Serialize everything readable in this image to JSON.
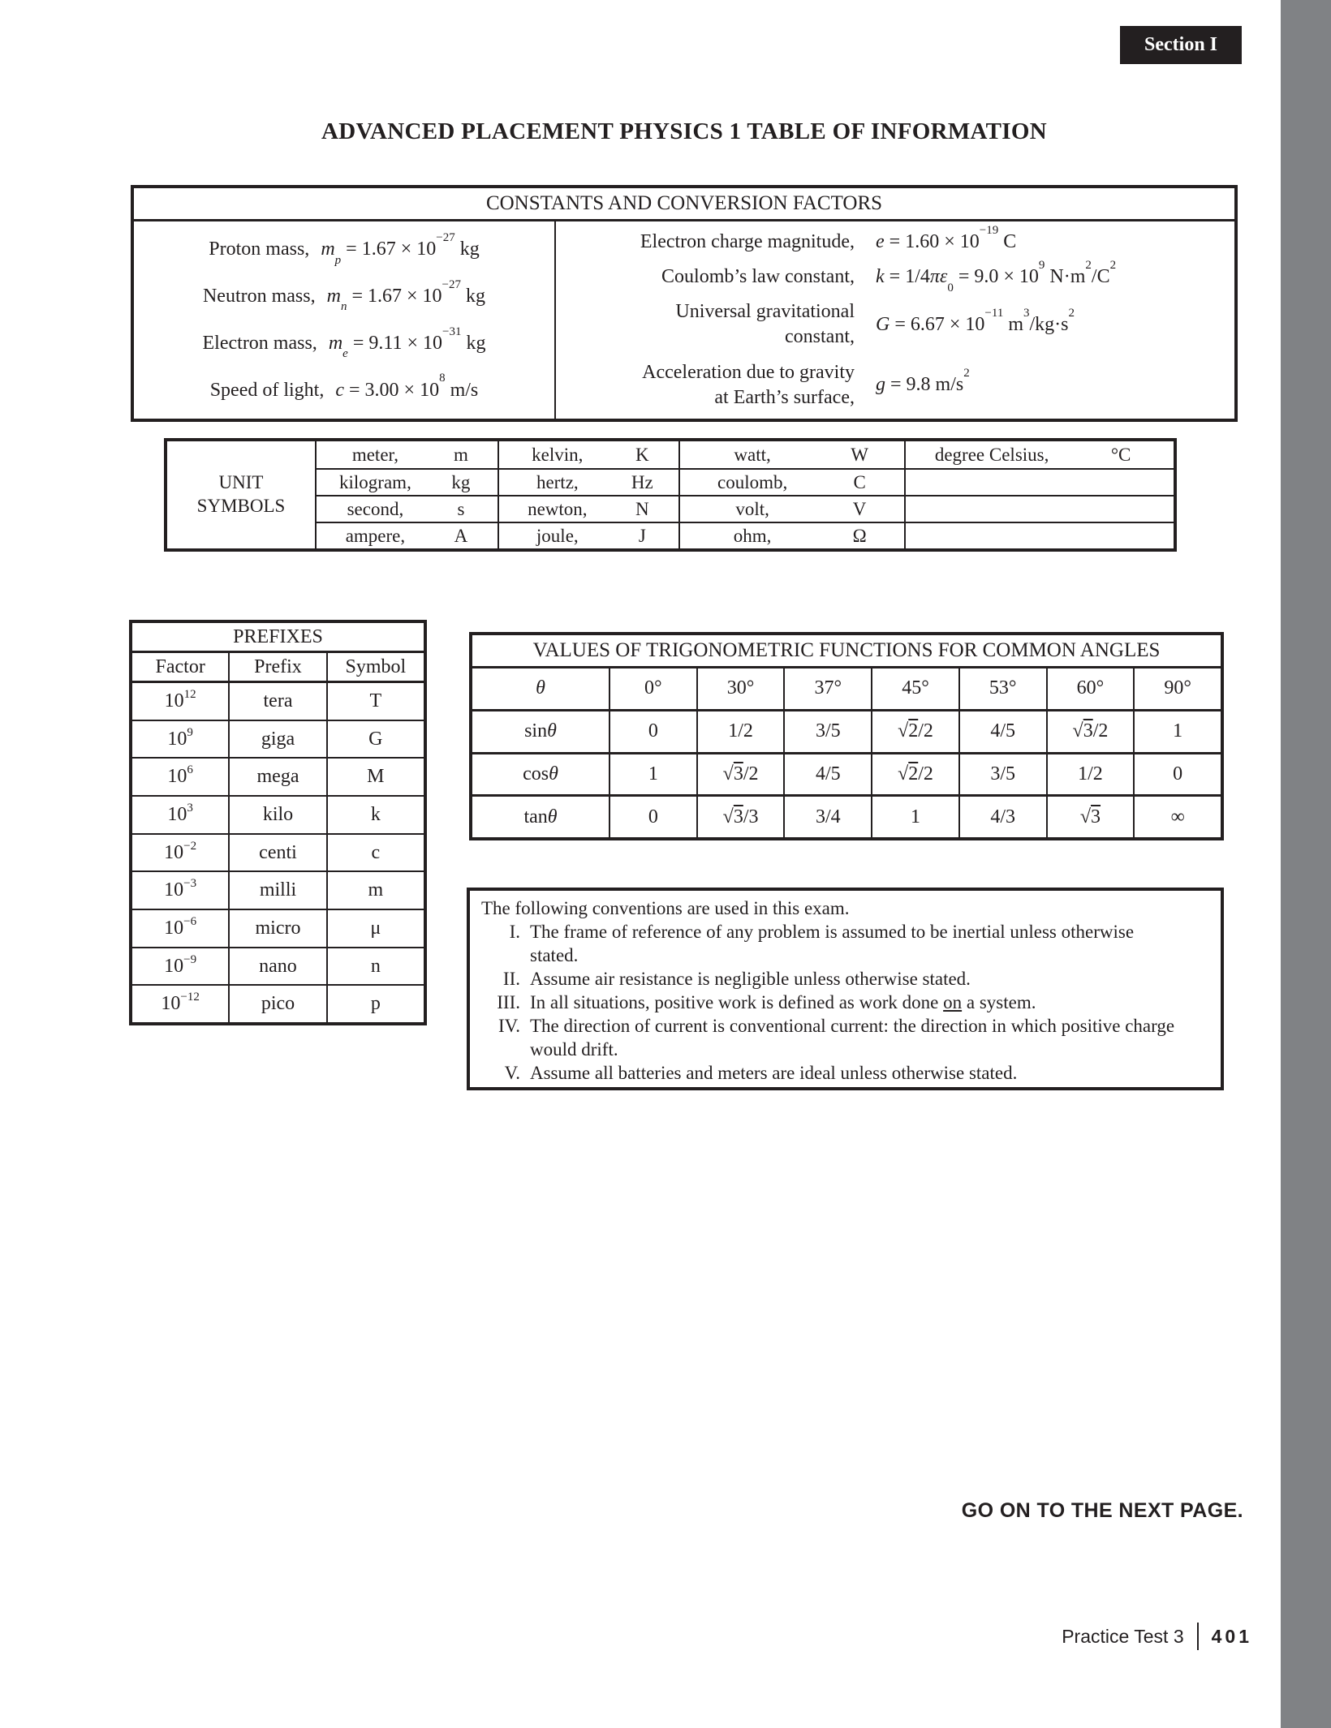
{
  "page": {
    "section_badge": "Section I",
    "title": "ADVANCED PLACEMENT PHYSICS 1 TABLE OF INFORMATION",
    "go_on": "GO ON TO THE NEXT PAGE.",
    "footer": {
      "label": "Practice Test 3",
      "page_number": "401"
    }
  },
  "colors": {
    "ink": "#231f20",
    "stripe_gray": "#808285",
    "badge_bg": "#231f20",
    "badge_text": "#ffffff"
  },
  "constants_box": {
    "header": "CONSTANTS AND CONVERSION FACTORS",
    "left": [
      {
        "label": "Proton mass,",
        "formula": "<i>m<sub>p</sub></i> = 1.67 × 10<sup>−27</sup> kg"
      },
      {
        "label": "Neutron mass,",
        "formula": "<i>m<sub>n</sub></i> = 1.67 × 10<sup>−27</sup> kg"
      },
      {
        "label": "Electron mass,",
        "formula": "<i>m<sub>e</sub></i> = 9.11 × 10<sup>−31</sup> kg"
      },
      {
        "label": "Speed of light,",
        "formula": "<i>c</i> = 3.00 × 10<sup>8</sup> m/s"
      }
    ],
    "right": [
      {
        "label": "Electron charge magnitude,",
        "formula": "<i>e</i> = 1.60 × 10<sup>−19</sup> C"
      },
      {
        "label": "Coulomb’s law constant,",
        "formula": "<i>k</i> = 1/4<i>πε</i><sub>0</sub> = 9.0 × 10<sup>9</sup> N·m<sup>2</sup>/C<sup>2</sup>"
      },
      {
        "label": "Universal gravitational<br>constant,",
        "formula": "<i>G</i> = 6.67 × 10<sup>−11</sup> m<sup>3</sup>/kg·s<sup>2</sup>"
      },
      {
        "label": "Acceleration due to gravity<br>at Earth’s surface,",
        "formula": "<i>g</i> = 9.8 m/s<sup>2</sup>"
      }
    ]
  },
  "unit_symbols": {
    "label": "UNIT SYMBOLS",
    "label_line1": "UNIT",
    "label_line2": "SYMBOLS",
    "col1": [
      {
        "name": "meter,",
        "sym": "m"
      },
      {
        "name": "kilogram,",
        "sym": "kg"
      },
      {
        "name": "second,",
        "sym": "s"
      },
      {
        "name": "ampere,",
        "sym": "A"
      }
    ],
    "col2": [
      {
        "name": "kelvin,",
        "sym": "K"
      },
      {
        "name": "hertz,",
        "sym": "Hz"
      },
      {
        "name": "newton,",
        "sym": "N"
      },
      {
        "name": "joule,",
        "sym": "J"
      }
    ],
    "col3": [
      {
        "name": "watt,",
        "sym": "W"
      },
      {
        "name": "coulomb,",
        "sym": "C"
      },
      {
        "name": "volt,",
        "sym": "V"
      },
      {
        "name": "ohm,",
        "sym": "Ω"
      }
    ],
    "col4": [
      {
        "name": "degree Celsius,",
        "sym": "°C"
      }
    ]
  },
  "prefixes": {
    "title": "PREFIXES",
    "headers": [
      "Factor",
      "Prefix",
      "Symbol"
    ],
    "rows": [
      {
        "factor": "10<sup>12</sup>",
        "prefix": "tera",
        "symbol": "T"
      },
      {
        "factor": "10<sup>9</sup>",
        "prefix": "giga",
        "symbol": "G"
      },
      {
        "factor": "10<sup>6</sup>",
        "prefix": "mega",
        "symbol": "M"
      },
      {
        "factor": "10<sup>3</sup>",
        "prefix": "kilo",
        "symbol": "k"
      },
      {
        "factor": "10<sup>−2</sup>",
        "prefix": "centi",
        "symbol": "c"
      },
      {
        "factor": "10<sup>−3</sup>",
        "prefix": "milli",
        "symbol": "m"
      },
      {
        "factor": "10<sup>−6</sup>",
        "prefix": "micro",
        "symbol": "μ"
      },
      {
        "factor": "10<sup>−9</sup>",
        "prefix": "nano",
        "symbol": "n"
      },
      {
        "factor": "10<sup>−12</sup>",
        "prefix": "pico",
        "symbol": "p"
      }
    ]
  },
  "trig": {
    "title": "VALUES OF TRIGONOMETRIC FUNCTIONS FOR COMMON ANGLES",
    "theta": "<i>θ</i>",
    "angles": [
      "0°",
      "30°",
      "37°",
      "45°",
      "53°",
      "60°",
      "90°"
    ],
    "rows": [
      {
        "fn": "sin<i>θ</i>",
        "values": [
          "0",
          "1/2",
          "3/5",
          "√<span class=ovl>2</span>/2",
          "4/5",
          "√<span class=ovl>3</span>/2",
          "1"
        ]
      },
      {
        "fn": "cos<i>θ</i>",
        "values": [
          "1",
          "√<span class=ovl>3</span>/2",
          "4/5",
          "√<span class=ovl>2</span>/2",
          "3/5",
          "1/2",
          "0"
        ]
      },
      {
        "fn": "tan<i>θ</i>",
        "values": [
          "0",
          "√<span class=ovl>3</span>/3",
          "3/4",
          "1",
          "4/3",
          "√<span class=ovl>3</span>",
          "∞"
        ]
      }
    ]
  },
  "conventions": {
    "intro": "The following conventions are used in this exam.",
    "items": [
      {
        "numeral": "I.",
        "text": "The frame of reference of any problem is assumed to be inertial unless otherwise stated."
      },
      {
        "numeral": "II.",
        "text": "Assume air resistance is negligible unless otherwise stated."
      },
      {
        "numeral": "III.",
        "text": "In all situations, positive work is defined as work done <u>on</u> a system."
      },
      {
        "numeral": "IV.",
        "text": "The direction of current is conventional current: the direction in which positive charge would drift."
      },
      {
        "numeral": "V.",
        "text": "Assume all batteries and meters are ideal unless otherwise stated."
      }
    ]
  }
}
